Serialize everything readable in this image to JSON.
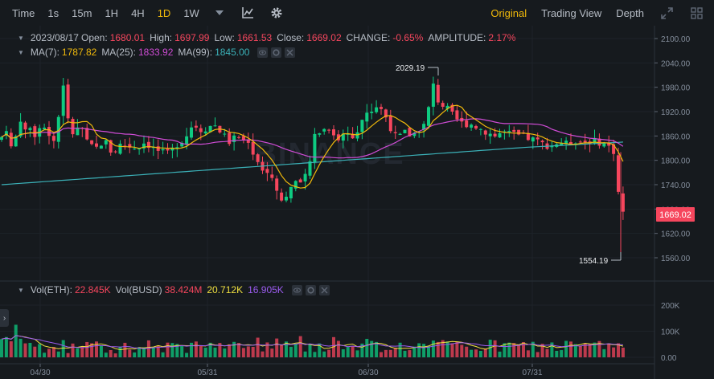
{
  "toolbar": {
    "intervals": [
      "Time",
      "1s",
      "15m",
      "1H",
      "4H",
      "1D",
      "1W"
    ],
    "active_interval": "1D",
    "views": [
      "Original",
      "Trading View",
      "Depth"
    ],
    "active_view": "Original"
  },
  "ohlc": {
    "date": "2023/08/17",
    "open_label": "Open:",
    "open": "1680.01",
    "high_label": "High:",
    "high": "1697.99",
    "low_label": "Low:",
    "low": "1661.53",
    "close_label": "Close:",
    "close": "1669.02",
    "change_label": "CHANGE:",
    "change": "-0.65%",
    "amplitude_label": "AMPLITUDE:",
    "amplitude": "2.17%"
  },
  "ma": {
    "ma7_label": "MA(7):",
    "ma7": "1787.82",
    "ma25_label": "MA(25):",
    "ma25": "1833.92",
    "ma99_label": "MA(99):",
    "ma99": "1845.00"
  },
  "volume": {
    "eth_label": "Vol(ETH):",
    "eth": "22.845K",
    "busd_label": "Vol(BUSD)",
    "busd": "38.424M",
    "ma1": "20.712K",
    "ma2": "16.905K"
  },
  "price_axis": [
    "2100.00",
    "2040.00",
    "1980.00",
    "1920.00",
    "1860.00",
    "1800.00",
    "1740.00",
    "1680.00",
    "1620.00",
    "1560.00"
  ],
  "volume_axis": [
    "200K",
    "100K",
    "0.00"
  ],
  "date_axis": [
    "04/30",
    "05/31",
    "06/30",
    "07/31"
  ],
  "current_price": "1669.02",
  "annotations": {
    "high": "2029.19",
    "low": "1554.19"
  },
  "watermark": "BINANCE",
  "colors": {
    "up": "#0ecb81",
    "down": "#f6465d",
    "ma7": "#f0b90b",
    "ma25": "#d04cd6",
    "ma99": "#3bb1b8",
    "accent": "#f0b90b"
  },
  "icons": [
    "chevron-down-icon",
    "indicator-icon",
    "settings-icon",
    "expand-icon",
    "grid-icon",
    "eye-icon",
    "settings-small-icon",
    "close-icon"
  ]
}
